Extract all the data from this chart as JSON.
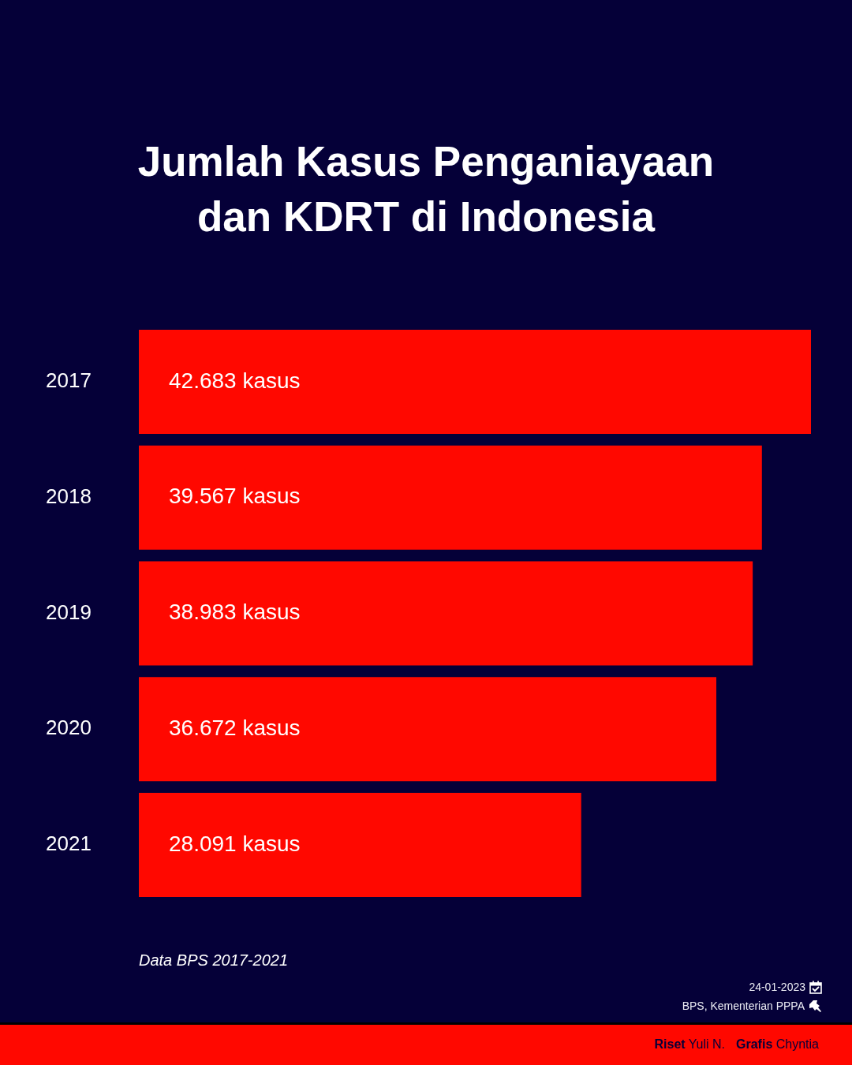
{
  "chart_data": {
    "type": "bar",
    "orientation": "horizontal",
    "title": "Jumlah Kasus Penganiayaan dan KDRT di Indonesia",
    "categories": [
      "2017",
      "2018",
      "2019",
      "2020",
      "2021"
    ],
    "values": [
      42683,
      39567,
      38983,
      36672,
      28091
    ],
    "color": "#ff0800",
    "value_labels": [
      "42.683 kasus",
      "39.567 kasus",
      "38.983 kasus",
      "36.672 kasus",
      "28.091 kasus"
    ],
    "tick_labels": "y",
    "annotations": [
      "Data BPS 2017-2021",
      "24-01-2023",
      "BPS, Kementerian PPPA",
      "Riset Yuli N.",
      "Grafis Chyntia"
    ]
  }
}
